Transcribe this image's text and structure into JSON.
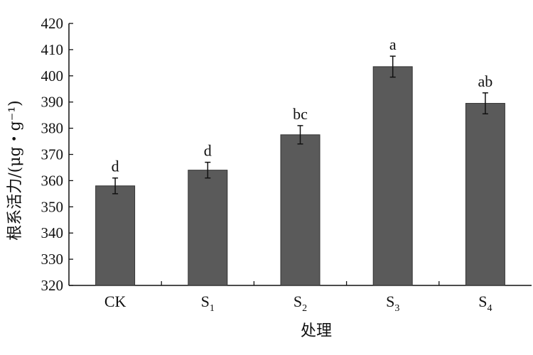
{
  "chart_data": {
    "type": "bar",
    "xlabel": "处理",
    "ylabel": "根系活力/(μg・g⁻¹)",
    "ylim": [
      320,
      420
    ],
    "yticks": [
      320,
      330,
      340,
      350,
      360,
      370,
      380,
      390,
      400,
      410,
      420
    ],
    "grid": false,
    "bar_color": "#5a5a5a",
    "categories": [
      {
        "base": "CK",
        "sub": ""
      },
      {
        "base": "S",
        "sub": "1"
      },
      {
        "base": "S",
        "sub": "2"
      },
      {
        "base": "S",
        "sub": "3"
      },
      {
        "base": "S",
        "sub": "4"
      }
    ],
    "values": [
      358,
      364,
      377.5,
      403.5,
      389.5
    ],
    "errors": [
      3,
      3,
      3.5,
      4,
      4
    ],
    "significance": [
      "d",
      "d",
      "bc",
      "a",
      "ab"
    ]
  }
}
